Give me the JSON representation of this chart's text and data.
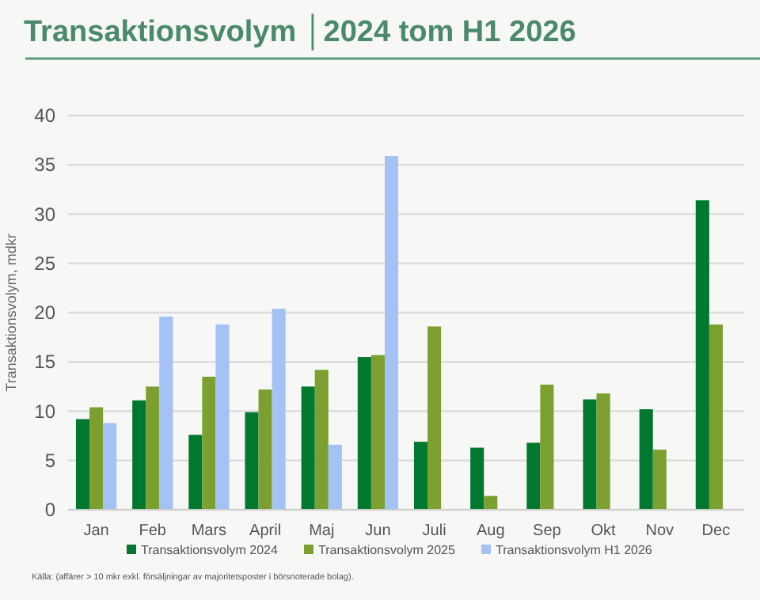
{
  "chart_data": {
    "type": "bar",
    "title": "Transaktionsvolym │2024 tom H1 2026",
    "ylabel": "Transaktionsvolym, mdkr",
    "categories": [
      "Jan",
      "Feb",
      "Mars",
      "April",
      "Maj",
      "Jun",
      "Juli",
      "Aug",
      "Sep",
      "Okt",
      "Nov",
      "Dec"
    ],
    "series": [
      {
        "name": "Transaktionsvolym 2024",
        "color": "#00782f",
        "values": [
          9.2,
          11.1,
          7.6,
          9.9,
          12.5,
          15.5,
          6.9,
          6.3,
          6.8,
          11.2,
          10.2,
          31.4
        ]
      },
      {
        "name": "Transaktionsvolym 2025",
        "color": "#7ba030",
        "values": [
          10.4,
          12.5,
          13.5,
          12.2,
          14.2,
          15.7,
          18.6,
          1.4,
          12.7,
          11.8,
          6.1,
          18.8
        ]
      },
      {
        "name": "Transaktionsvolym H1  2026",
        "color": "#a4c2f4",
        "values": [
          8.8,
          19.6,
          18.8,
          20.4,
          6.6,
          35.9,
          null,
          null,
          null,
          null,
          null,
          null
        ]
      }
    ],
    "ylim": [
      0,
      40
    ],
    "yticks": [
      0,
      5,
      10,
      15,
      20,
      25,
      30,
      35,
      40
    ],
    "grid": "y",
    "legend": "bottom",
    "annotations": [
      "Källa: (affärer > 10 mkr exkl. försäljningar av majoritetsposter i börsnoterade bolag)."
    ]
  }
}
